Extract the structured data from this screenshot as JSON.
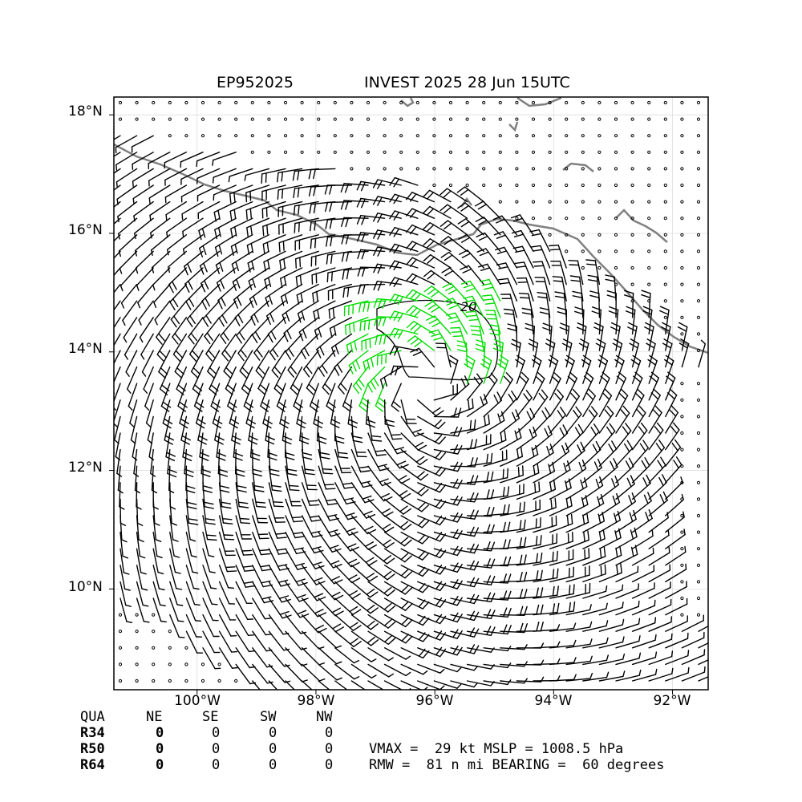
{
  "title": {
    "storm_id": "EP952025",
    "desc": "INVEST 2025 28 Jun 15UTC"
  },
  "axes": {
    "lat_ticks": [
      "18°N",
      "16°N",
      "14°N",
      "12°N",
      "10°N"
    ],
    "lon_ticks": [
      "100°W",
      "98°W",
      "96°W",
      "94°W",
      "92°W"
    ],
    "lon_range": [
      -101.4,
      -91.4
    ],
    "lat_range": [
      8.3,
      18.3
    ]
  },
  "contour_label": "20",
  "colors": {
    "barb": "#000000",
    "strong_barb": "#00dd00",
    "coast": "#808080",
    "grid": "#dddddd"
  },
  "quadrant_table": {
    "header": [
      "QUA",
      "NE",
      "SE",
      "SW",
      "NW"
    ],
    "rows": [
      {
        "label": "R34",
        "values": [
          "0",
          "0",
          "0",
          "0"
        ]
      },
      {
        "label": "R50",
        "values": [
          "0",
          "0",
          "0",
          "0"
        ]
      },
      {
        "label": "R64",
        "values": [
          "0",
          "0",
          "0",
          "0"
        ]
      }
    ]
  },
  "stats": {
    "line1": "VMAX =  29 kt MSLP = 1008.5 hPa",
    "line2": "RMW =  81 n mi BEARING =  60 degrees"
  }
}
